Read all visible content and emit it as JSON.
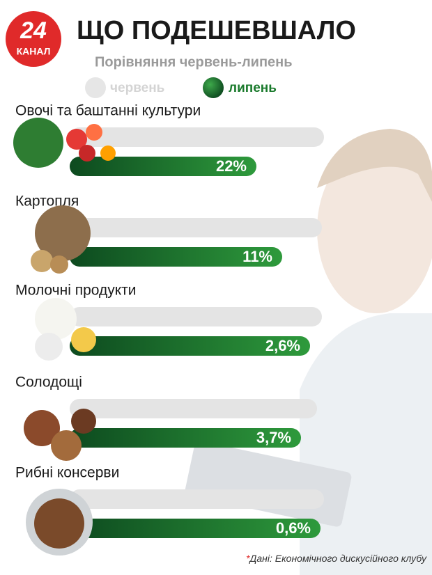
{
  "logo": {
    "number": "24",
    "name": "КАНАЛ"
  },
  "header": {
    "title": "ЩО ПОДЕШЕВШАЛО",
    "subtitle": "Порівняння червень-липень"
  },
  "legend": [
    "червень",
    "липень"
  ],
  "items": [
    {
      "label": "Овочі та баштанні культури",
      "value_label": "22%"
    },
    {
      "label": "Картопля",
      "value_label": "11%"
    },
    {
      "label": "Молочні продукти",
      "value_label": "2,6%"
    },
    {
      "label": "Солодощі",
      "value_label": "3,7%"
    },
    {
      "label": "Рибні консерви",
      "value_label": "0,6%"
    }
  ],
  "source": {
    "mark": "*",
    "text": "Дані: Економічного дискусійного клубу"
  }
}
